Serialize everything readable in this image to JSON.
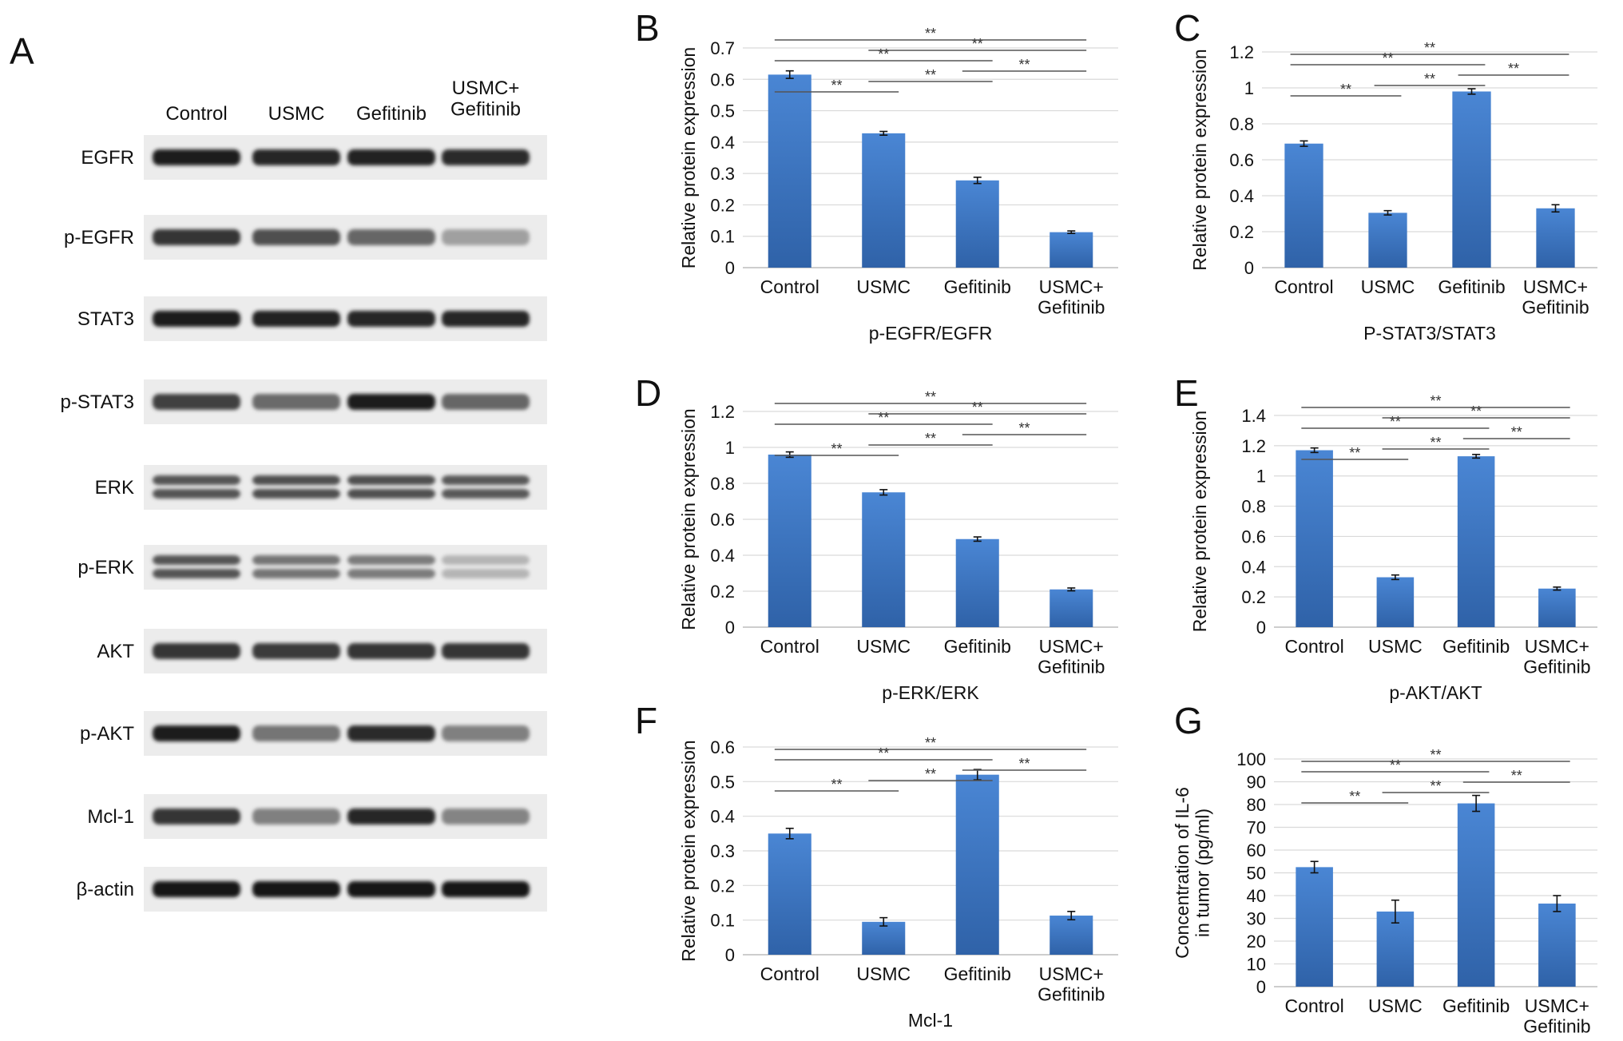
{
  "western_blot": {
    "panel_letter": "A",
    "columns": [
      "Control",
      "USMC",
      "Gefitinib",
      "USMC+\nGefitinib"
    ],
    "rows": [
      {
        "label": "EGFR",
        "intensity": [
          0.95,
          0.92,
          0.93,
          0.9
        ],
        "double": false
      },
      {
        "label": "p-EGFR",
        "intensity": [
          0.85,
          0.72,
          0.62,
          0.35
        ],
        "double": false
      },
      {
        "label": "STAT3",
        "intensity": [
          0.95,
          0.93,
          0.92,
          0.92
        ],
        "double": false
      },
      {
        "label": "p-STAT3",
        "intensity": [
          0.8,
          0.6,
          0.95,
          0.62
        ],
        "double": false
      },
      {
        "label": "ERK",
        "intensity": [
          0.7,
          0.72,
          0.72,
          0.68
        ],
        "double": true
      },
      {
        "label": "p-ERK",
        "intensity": [
          0.7,
          0.55,
          0.52,
          0.25
        ],
        "double": true
      },
      {
        "label": "AKT",
        "intensity": [
          0.85,
          0.82,
          0.84,
          0.85
        ],
        "double": false
      },
      {
        "label": "p-AKT",
        "intensity": [
          0.95,
          0.55,
          0.9,
          0.5
        ],
        "double": false
      },
      {
        "label": "Mcl-1",
        "intensity": [
          0.85,
          0.5,
          0.92,
          0.48
        ],
        "double": false
      },
      {
        "label": "β-actin",
        "intensity": [
          0.98,
          0.98,
          0.98,
          0.98
        ],
        "double": false
      }
    ]
  },
  "chart_data": [
    {
      "panel": "B",
      "type": "bar",
      "categories": [
        "Control",
        "USMC",
        "Gefitinib",
        "USMC+\nGefitinib"
      ],
      "values": [
        0.615,
        0.428,
        0.278,
        0.113
      ],
      "errors": [
        0.012,
        0.006,
        0.01,
        0.004
      ],
      "xlabel": "p-EGFR/EGFR",
      "ylabel": "Relative protein expression",
      "ylim": [
        0,
        0.7
      ],
      "ticks": [
        0,
        0.1,
        0.2,
        0.3,
        0.4,
        0.5,
        0.6,
        0.7
      ],
      "significance": [
        {
          "from": 0,
          "to": 1,
          "label": "**"
        },
        {
          "from": 0,
          "to": 2,
          "label": "**"
        },
        {
          "from": 0,
          "to": 3,
          "label": "**"
        },
        {
          "from": 1,
          "to": 2,
          "label": "**"
        },
        {
          "from": 1,
          "to": 3,
          "label": "**"
        },
        {
          "from": 2,
          "to": 3,
          "label": "**"
        }
      ]
    },
    {
      "panel": "C",
      "type": "bar",
      "categories": [
        "Control",
        "USMC",
        "Gefitinib",
        "USMC+\nGefitinib"
      ],
      "values": [
        0.69,
        0.305,
        0.98,
        0.33
      ],
      "errors": [
        0.015,
        0.012,
        0.015,
        0.02
      ],
      "xlabel": "P-STAT3/STAT3",
      "ylabel": "Relative protein expression",
      "ylim": [
        0,
        1.2
      ],
      "ticks": [
        0,
        0.2,
        0.4,
        0.6,
        0.8,
        1,
        1.2
      ],
      "significance": [
        {
          "from": 0,
          "to": 1,
          "label": "**"
        },
        {
          "from": 0,
          "to": 2,
          "label": "**"
        },
        {
          "from": 0,
          "to": 3,
          "label": "**"
        },
        {
          "from": 1,
          "to": 2,
          "label": "**"
        },
        {
          "from": 2,
          "to": 3,
          "label": "**"
        }
      ]
    },
    {
      "panel": "D",
      "type": "bar",
      "categories": [
        "Control",
        "USMC",
        "Gefitinib",
        "USMC+\nGefitinib"
      ],
      "values": [
        0.96,
        0.75,
        0.49,
        0.21
      ],
      "errors": [
        0.015,
        0.015,
        0.012,
        0.008
      ],
      "xlabel": "p-ERK/ERK",
      "ylabel": "Relative protein expression",
      "ylim": [
        0,
        1.2
      ],
      "ticks": [
        0,
        0.2,
        0.4,
        0.6,
        0.8,
        1,
        1.2
      ],
      "significance": [
        {
          "from": 0,
          "to": 1,
          "label": "**"
        },
        {
          "from": 0,
          "to": 2,
          "label": "**"
        },
        {
          "from": 0,
          "to": 3,
          "label": "**"
        },
        {
          "from": 1,
          "to": 2,
          "label": "**"
        },
        {
          "from": 1,
          "to": 3,
          "label": "**"
        },
        {
          "from": 2,
          "to": 3,
          "label": "**"
        }
      ]
    },
    {
      "panel": "E",
      "type": "bar",
      "categories": [
        "Control",
        "USMC",
        "Gefitinib",
        "USMC+\nGefitinib"
      ],
      "values": [
        1.17,
        0.33,
        1.13,
        0.255
      ],
      "errors": [
        0.015,
        0.015,
        0.012,
        0.01
      ],
      "xlabel": "p-AKT/AKT",
      "ylabel": "Relative protein expression",
      "ylim": [
        0,
        1.4
      ],
      "ticks": [
        0,
        0.2,
        0.4,
        0.6,
        0.8,
        1,
        1.2,
        1.4
      ],
      "significance": [
        {
          "from": 0,
          "to": 1,
          "label": "**"
        },
        {
          "from": 0,
          "to": 2,
          "label": "**"
        },
        {
          "from": 0,
          "to": 3,
          "label": "**"
        },
        {
          "from": 1,
          "to": 2,
          "label": "**"
        },
        {
          "from": 1,
          "to": 3,
          "label": "**"
        },
        {
          "from": 2,
          "to": 3,
          "label": "**"
        }
      ]
    },
    {
      "panel": "F",
      "type": "bar",
      "categories": [
        "Control",
        "USMC",
        "Gefitinib",
        "USMC+\nGefitinib"
      ],
      "values": [
        0.35,
        0.095,
        0.52,
        0.113
      ],
      "errors": [
        0.015,
        0.012,
        0.015,
        0.012
      ],
      "xlabel": "Mcl-1",
      "ylabel": "Relative protein expression",
      "ylim": [
        0,
        0.6
      ],
      "ticks": [
        0,
        0.1,
        0.2,
        0.3,
        0.4,
        0.5,
        0.6
      ],
      "significance": [
        {
          "from": 0,
          "to": 1,
          "label": "**"
        },
        {
          "from": 0,
          "to": 2,
          "label": "**"
        },
        {
          "from": 0,
          "to": 3,
          "label": "**"
        },
        {
          "from": 1,
          "to": 2,
          "label": "**"
        },
        {
          "from": 2,
          "to": 3,
          "label": "**"
        }
      ]
    },
    {
      "panel": "G",
      "type": "bar",
      "categories": [
        "Control",
        "USMC",
        "Gefitinib",
        "USMC+\nGefitinib"
      ],
      "values": [
        52.5,
        33,
        80.5,
        36.5
      ],
      "errors": [
        2.5,
        5,
        3.5,
        3.5
      ],
      "xlabel": "",
      "ylabel": "Concentration of IL-6\nin tumor (pg/ml)",
      "ylim": [
        0,
        100
      ],
      "ticks": [
        0,
        10,
        20,
        30,
        40,
        50,
        60,
        70,
        80,
        90,
        100
      ],
      "significance": [
        {
          "from": 0,
          "to": 1,
          "label": "**"
        },
        {
          "from": 0,
          "to": 2,
          "label": "**"
        },
        {
          "from": 0,
          "to": 3,
          "label": "**"
        },
        {
          "from": 1,
          "to": 2,
          "label": "**"
        },
        {
          "from": 2,
          "to": 3,
          "label": "**"
        }
      ]
    }
  ]
}
